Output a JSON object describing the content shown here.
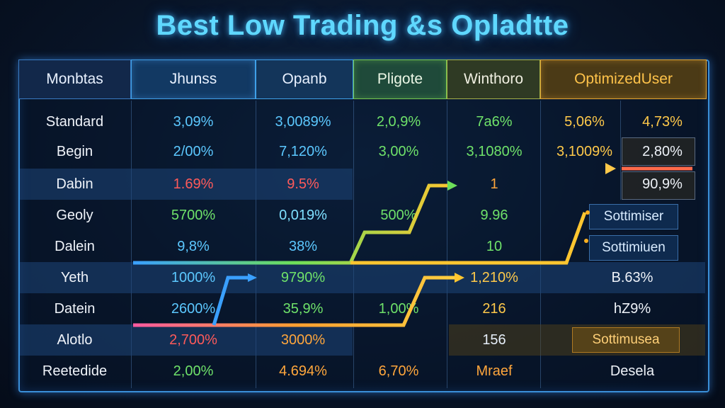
{
  "title": "Best Low Trading &s Opladtte",
  "headers": [
    "Monbtas",
    "Jhunss",
    "Opanb",
    "Pligote",
    "Winthoro",
    "OptimizedUser"
  ],
  "rows": [
    {
      "label": "Standard",
      "values": [
        "3,09%",
        "3,0089%",
        "2,0,9%",
        "7a6%",
        "5,06%",
        "4,73%"
      ]
    },
    {
      "label": "Begin",
      "values": [
        "2/00%",
        "7,120%",
        "3,00%",
        "3,1080%",
        "3,1009%",
        "2,80%"
      ]
    },
    {
      "label": "Dabin",
      "values": [
        "1.69%",
        "9.5%",
        "",
        "1",
        "",
        "90,9%"
      ]
    },
    {
      "label": "Geoly",
      "values": [
        "5700%",
        "0,019%",
        "500%",
        "9.96",
        "Sottimiser"
      ]
    },
    {
      "label": "Dalein",
      "values": [
        "9,8%",
        "38%",
        "",
        "10",
        "Sottimiuen"
      ]
    },
    {
      "label": "Yeth",
      "values": [
        "1000%",
        "9790%",
        "",
        "1,210%",
        "B.63%"
      ]
    },
    {
      "label": "Datein",
      "values": [
        "2600%",
        "35,9%",
        "1,00%",
        "216",
        "hZ9%"
      ]
    },
    {
      "label": "Alotlo",
      "values": [
        "2,700%",
        "3000%",
        "",
        "156",
        "Sottimusea"
      ]
    },
    {
      "label": "Reetedide",
      "values": [
        "2,00%",
        "4.694%",
        "6,70%",
        "Mraef",
        "Desela"
      ]
    }
  ],
  "colors": {
    "title": "#5fd8ff",
    "blue": "#5cc8ff",
    "red": "#ff5a5a",
    "green": "#6fe26a",
    "yellow": "#ffc94a",
    "orange": "#ffa63c",
    "frame": "#3a8fd8"
  }
}
